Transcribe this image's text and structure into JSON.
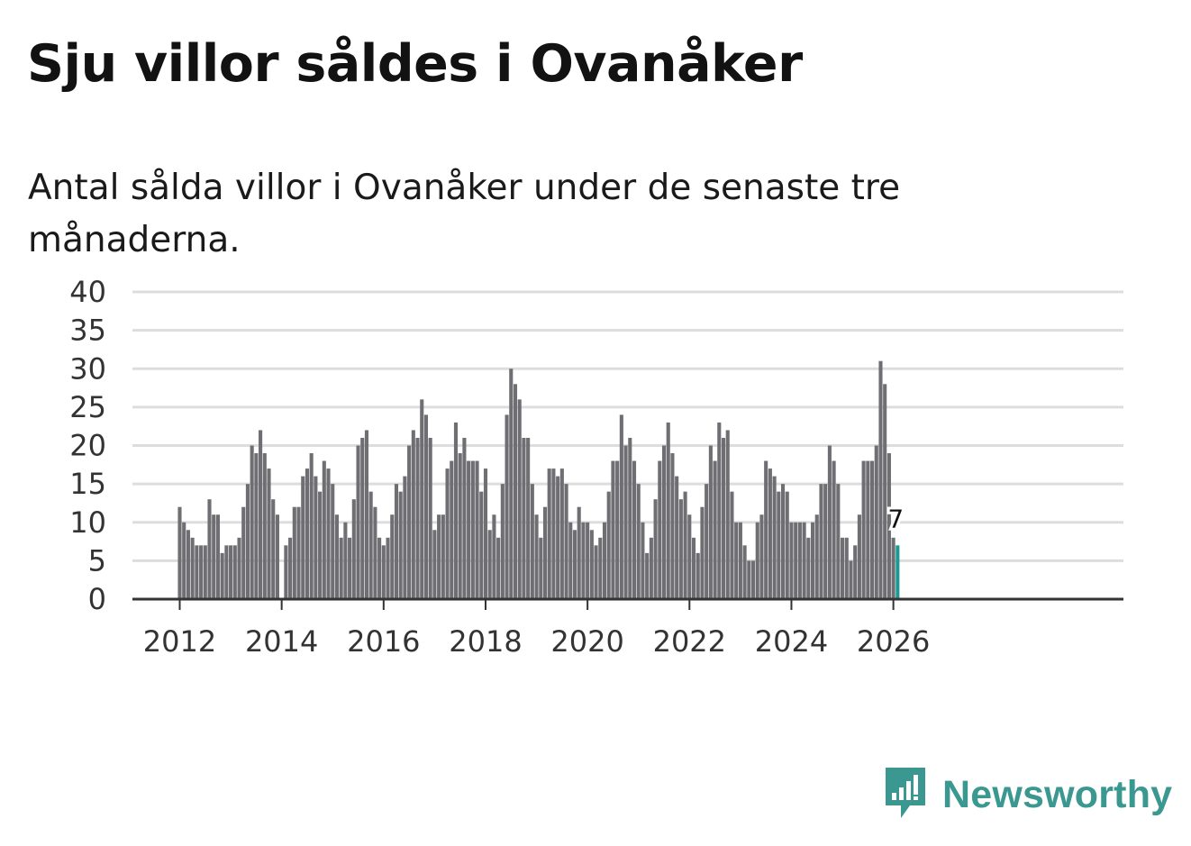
{
  "title": "Sju villor såldes i Ovanåker",
  "subtitle": "Antal sålda villor i Ovanåker under de senaste tre månaderna.",
  "brand": {
    "name": "Newsworthy",
    "icon": "newsworthy-logo-icon",
    "color": "#3a9890"
  },
  "chart_data": {
    "type": "bar",
    "title": "Sju villor såldes i Ovanåker",
    "xlabel": "",
    "ylabel": "",
    "ylim": [
      0,
      40
    ],
    "yticks": [
      "0",
      "5",
      "10",
      "15",
      "20",
      "25",
      "30",
      "35",
      "40"
    ],
    "xticks": [
      "2012",
      "2014",
      "2016",
      "2018",
      "2020",
      "2022",
      "2024",
      "2026"
    ],
    "grid": true,
    "bar_color": "#6f6f73",
    "highlight_color": "#1c9a91",
    "start": "2012-01",
    "highlight_label": "7",
    "values": [
      12,
      10,
      9,
      8,
      7,
      7,
      7,
      13,
      11,
      11,
      6,
      7,
      7,
      7,
      8,
      12,
      15,
      20,
      19,
      22,
      19,
      17,
      13,
      11,
      0,
      7,
      8,
      12,
      12,
      16,
      17,
      19,
      16,
      14,
      18,
      17,
      15,
      11,
      8,
      10,
      8,
      13,
      20,
      21,
      22,
      14,
      12,
      8,
      7,
      8,
      11,
      15,
      14,
      16,
      20,
      22,
      21,
      26,
      24,
      21,
      9,
      11,
      11,
      17,
      18,
      23,
      19,
      21,
      18,
      18,
      18,
      14,
      17,
      9,
      11,
      8,
      15,
      24,
      30,
      28,
      26,
      21,
      21,
      15,
      11,
      8,
      12,
      17,
      17,
      16,
      17,
      15,
      10,
      9,
      12,
      10,
      10,
      9,
      7,
      8,
      10,
      14,
      18,
      18,
      24,
      20,
      21,
      18,
      15,
      10,
      6,
      8,
      13,
      18,
      20,
      23,
      19,
      16,
      13,
      14,
      11,
      8,
      6,
      12,
      15,
      20,
      18,
      23,
      21,
      22,
      14,
      10,
      10,
      7,
      5,
      5,
      10,
      11,
      18,
      17,
      16,
      14,
      15,
      14,
      10,
      10,
      10,
      10,
      8,
      10,
      11,
      15,
      15,
      20,
      18,
      15,
      8,
      8,
      5,
      7,
      11,
      18,
      18,
      18,
      20,
      31,
      28,
      19,
      8,
      7
    ]
  }
}
